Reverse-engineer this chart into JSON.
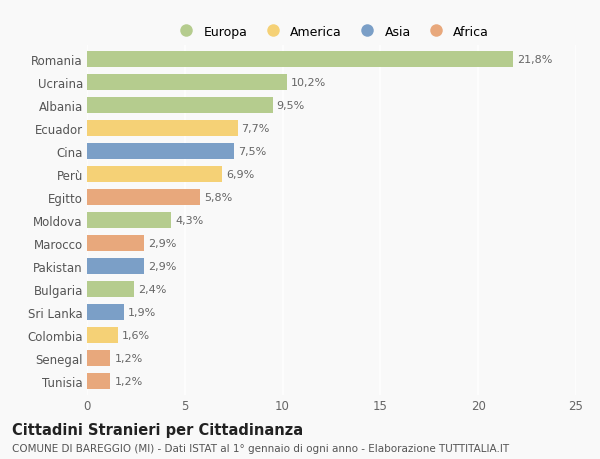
{
  "countries": [
    "Romania",
    "Ucraina",
    "Albania",
    "Ecuador",
    "Cina",
    "Perù",
    "Egitto",
    "Moldova",
    "Marocco",
    "Pakistan",
    "Bulgaria",
    "Sri Lanka",
    "Colombia",
    "Senegal",
    "Tunisia"
  ],
  "values": [
    21.8,
    10.2,
    9.5,
    7.7,
    7.5,
    6.9,
    5.8,
    4.3,
    2.9,
    2.9,
    2.4,
    1.9,
    1.6,
    1.2,
    1.2
  ],
  "labels": [
    "21,8%",
    "10,2%",
    "9,5%",
    "7,7%",
    "7,5%",
    "6,9%",
    "5,8%",
    "4,3%",
    "2,9%",
    "2,9%",
    "2,4%",
    "1,9%",
    "1,6%",
    "1,2%",
    "1,2%"
  ],
  "continents": [
    "Europa",
    "Europa",
    "Europa",
    "America",
    "Asia",
    "America",
    "Africa",
    "Europa",
    "Africa",
    "Asia",
    "Europa",
    "Asia",
    "America",
    "Africa",
    "Africa"
  ],
  "colors": {
    "Europa": "#b5cc8e",
    "America": "#f5d176",
    "Asia": "#7b9fc7",
    "Africa": "#e8a87c"
  },
  "legend_order": [
    "Europa",
    "America",
    "Asia",
    "Africa"
  ],
  "title": "Cittadini Stranieri per Cittadinanza",
  "subtitle": "COMUNE DI BAREGGIO (MI) - Dati ISTAT al 1° gennaio di ogni anno - Elaborazione TUTTITALIA.IT",
  "xlim": [
    0,
    25
  ],
  "xticks": [
    0,
    5,
    10,
    15,
    20,
    25
  ],
  "background_color": "#f9f9f9",
  "bar_height": 0.72,
  "label_fontsize": 8.0,
  "tick_fontsize": 8.5,
  "title_fontsize": 10.5,
  "subtitle_fontsize": 7.5
}
